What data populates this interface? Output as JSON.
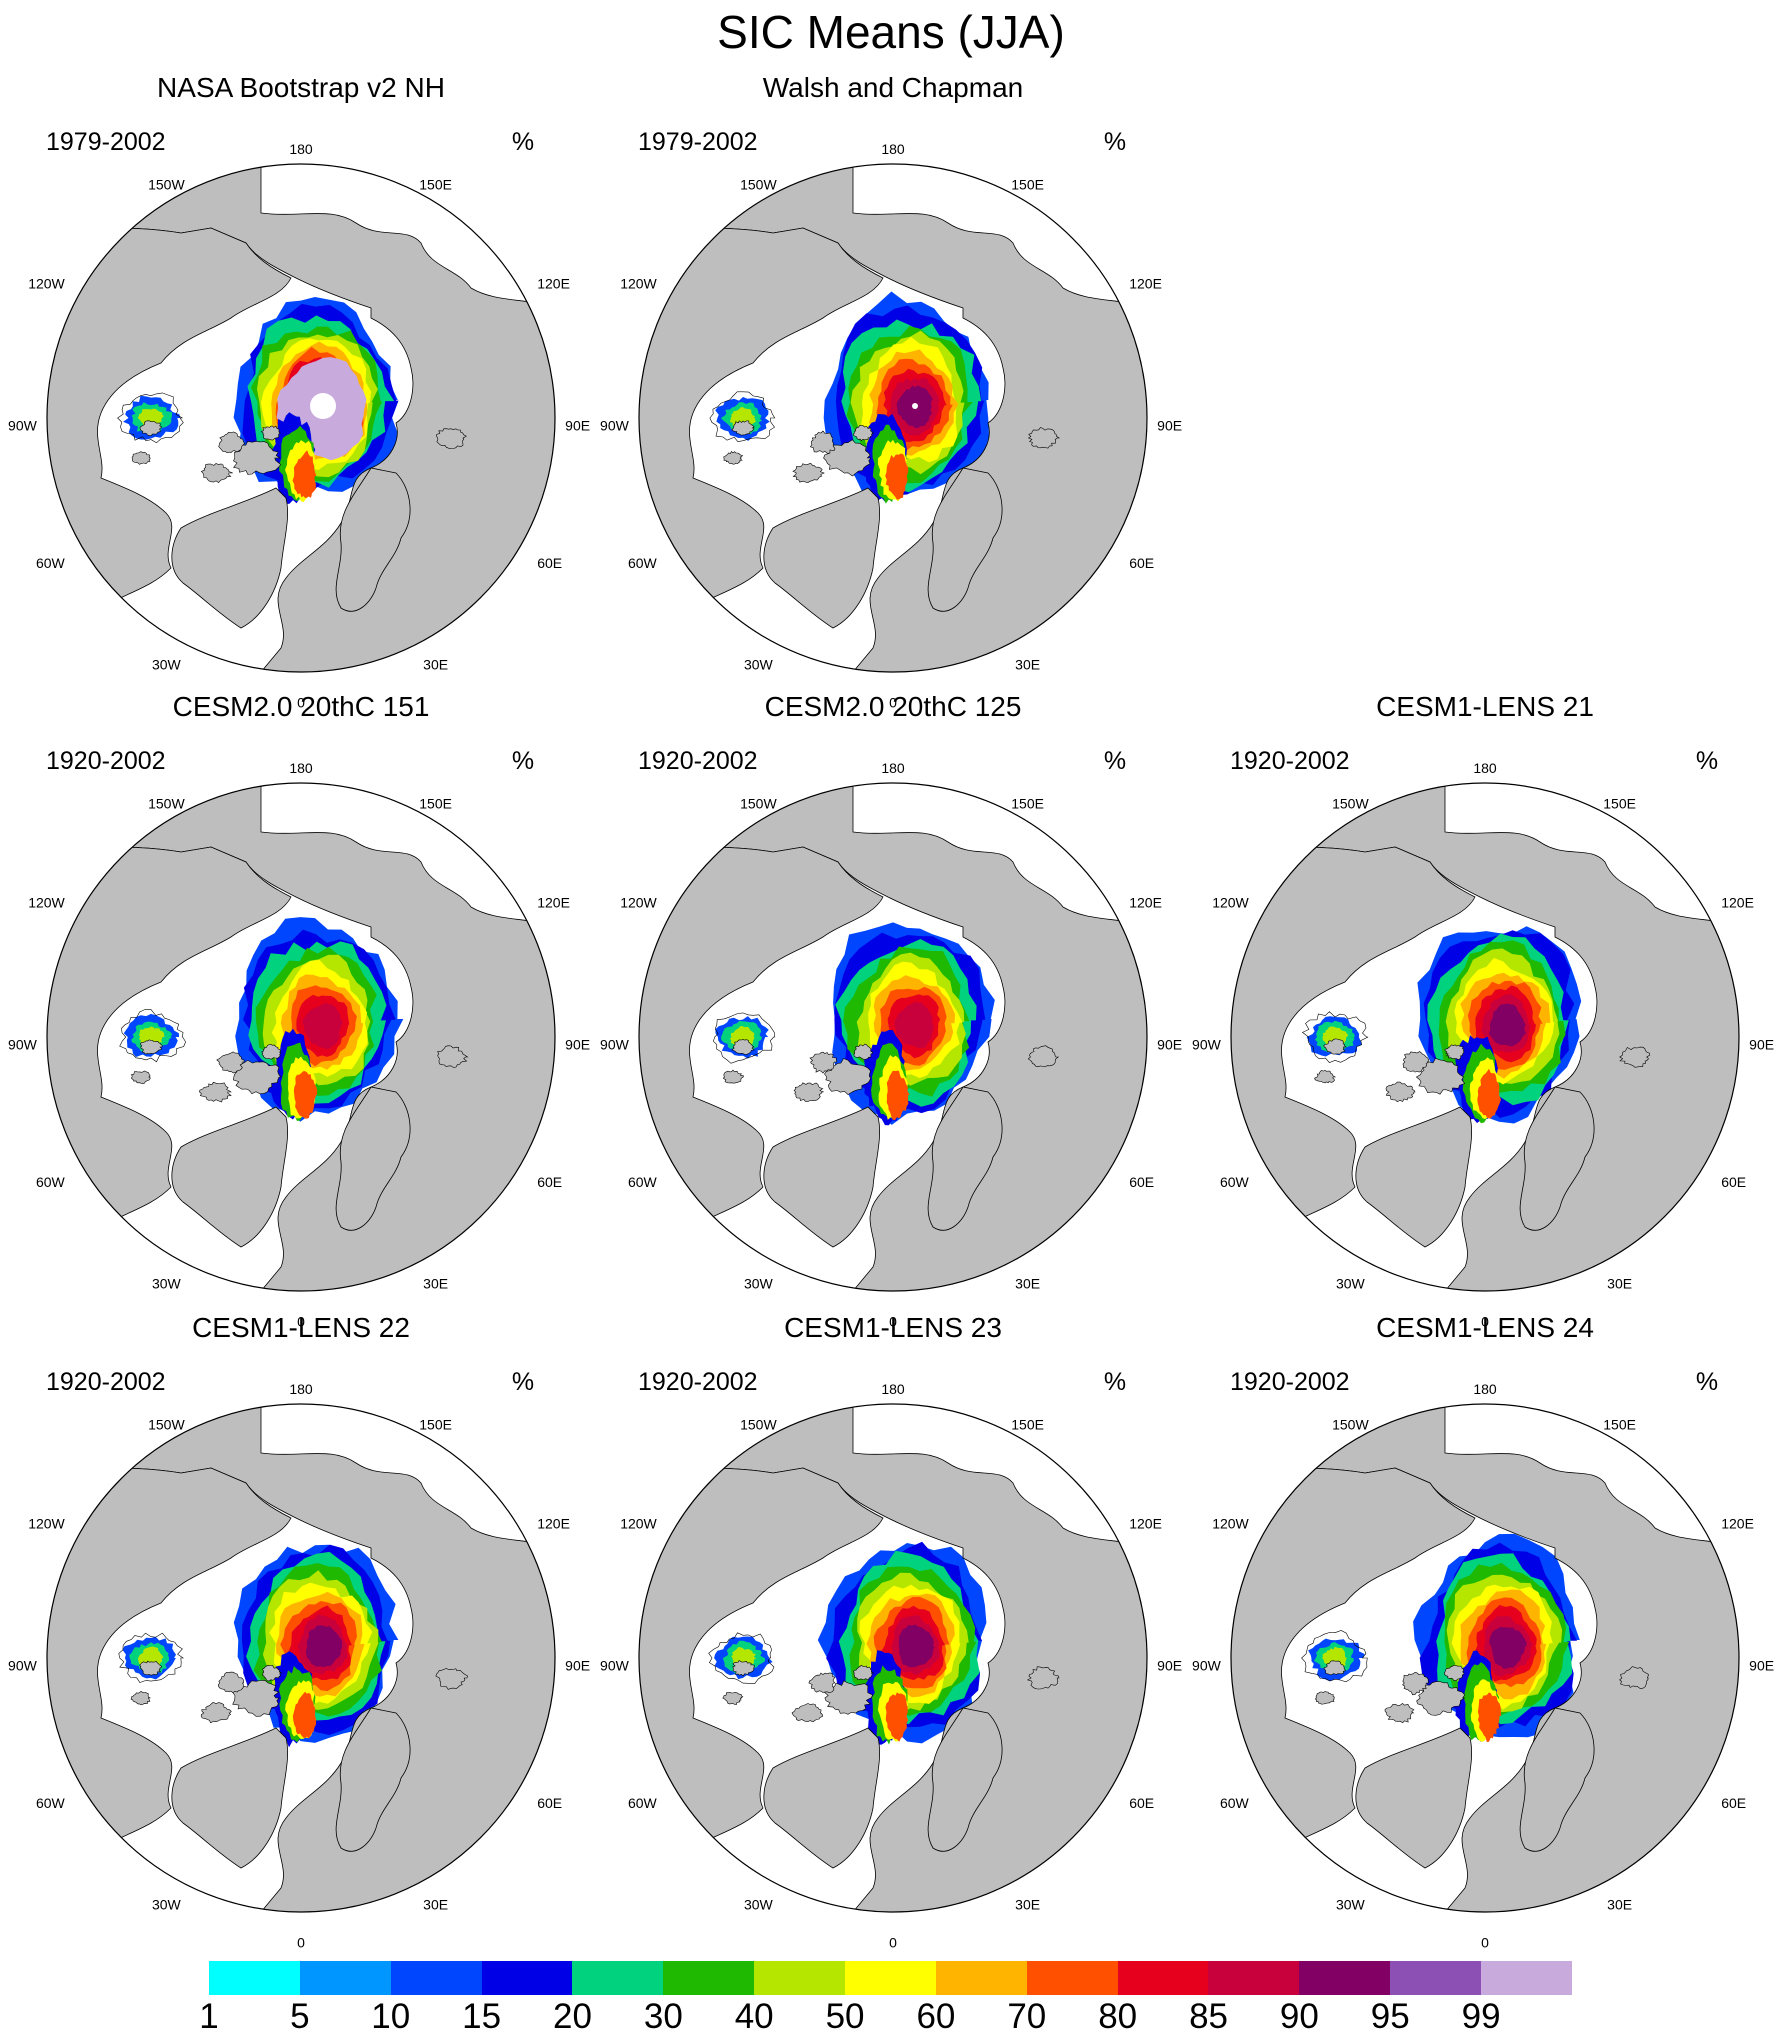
{
  "title": "SIC Means (JJA)",
  "unit": "%",
  "longitude_labels": {
    "top": "180",
    "bottom": "0",
    "upper_left": "150W",
    "upper_right": "150E",
    "left_upper": "120W",
    "right_upper": "120E",
    "left": "90W",
    "right": "90E",
    "left_lower": "60W",
    "right_lower": "60E",
    "lower_left": "30W",
    "lower_right": "30E"
  },
  "colors": {
    "land": "#bebebe",
    "ocean": "#ffffff",
    "outline": "#000000",
    "levels": [
      "#00ffff",
      "#0096ff",
      "#0046ff",
      "#0000e6",
      "#00d27d",
      "#1eb900",
      "#b4e600",
      "#ffff00",
      "#ffb400",
      "#ff5000",
      "#e6001e",
      "#c8003c",
      "#820064",
      "#8c50b4",
      "#c8aadc"
    ]
  },
  "colorbar": {
    "labels": [
      "1",
      "5",
      "10",
      "15",
      "20",
      "30",
      "40",
      "50",
      "60",
      "70",
      "80",
      "85",
      "90",
      "95",
      "99"
    ]
  },
  "panels": [
    {
      "title": "NASA Bootstrap v2 NH",
      "period": "1979-2002",
      "max_level": 14,
      "fade_ring": 1,
      "pole_hole": "large"
    },
    {
      "title": "Walsh and Chapman",
      "period": "1979-2002",
      "max_level": 12,
      "fade_ring": 0,
      "pole_hole": "small"
    },
    {
      "title": "CESM2.0 20thC 151",
      "period": "1920-2002",
      "max_level": 11,
      "fade_ring": 0,
      "pole_hole": "none"
    },
    {
      "title": "CESM2.0 20thC 125",
      "period": "1920-2002",
      "max_level": 11,
      "fade_ring": 0,
      "pole_hole": "none"
    },
    {
      "title": "CESM1-LENS 21",
      "period": "1920-2002",
      "max_level": 12,
      "fade_ring": 0,
      "pole_hole": "none"
    },
    {
      "title": "CESM1-LENS 22",
      "period": "1920-2002",
      "max_level": 12,
      "fade_ring": 0,
      "pole_hole": "none"
    },
    {
      "title": "CESM1-LENS 23",
      "period": "1920-2002",
      "max_level": 12,
      "fade_ring": 0,
      "pole_hole": "none"
    },
    {
      "title": "CESM1-LENS 24",
      "period": "1920-2002",
      "max_level": 12,
      "fade_ring": 0,
      "pole_hole": "none"
    }
  ]
}
